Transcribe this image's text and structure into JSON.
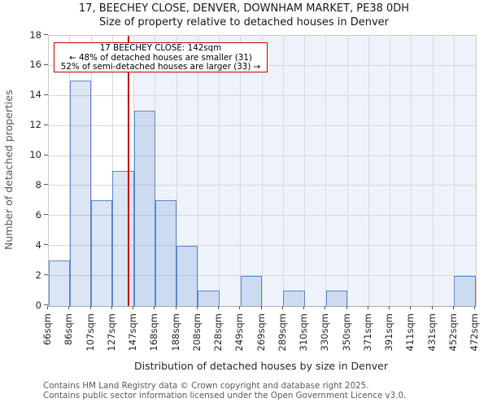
{
  "title": "17, BEECHEY CLOSE, DENVER, DOWNHAM MARKET, PE38 0DH",
  "subtitle": "Size of property relative to detached houses in Denver",
  "annotation": {
    "line1": "17 BEECHEY CLOSE: 142sqm",
    "line2": "← 48% of detached houses are smaller (31)",
    "line3": "52% of semi-detached houses are larger (33) →"
  },
  "y_axis": {
    "label": "Number of detached properties",
    "ticks": [
      0,
      2,
      4,
      6,
      8,
      10,
      12,
      14,
      16,
      18
    ]
  },
  "x_axis": {
    "label": "Distribution of detached houses by size in Denver",
    "tick_labels": [
      "66sqm",
      "86sqm",
      "107sqm",
      "127sqm",
      "147sqm",
      "168sqm",
      "188sqm",
      "208sqm",
      "228sqm",
      "249sqm",
      "269sqm",
      "289sqm",
      "310sqm",
      "330sqm",
      "350sqm",
      "371sqm",
      "391sqm",
      "411sqm",
      "431sqm",
      "452sqm",
      "472sqm"
    ]
  },
  "chart_data": {
    "type": "bar",
    "title": "Size of property relative to detached houses in Denver",
    "xlabel": "Distribution of detached houses by size in Denver",
    "ylabel": "Number of detached properties",
    "bin_edges_sqm": [
      66,
      86,
      107,
      127,
      147,
      168,
      188,
      208,
      228,
      249,
      269,
      289,
      310,
      330,
      350,
      371,
      391,
      411,
      431,
      452,
      472
    ],
    "counts": [
      3,
      15,
      7,
      9,
      13,
      7,
      4,
      1,
      0,
      2,
      0,
      1,
      0,
      1,
      0,
      0,
      0,
      0,
      0,
      2
    ],
    "marker_value_sqm": 142,
    "marker_label": "17 BEECHEY CLOSE: 142sqm",
    "smaller_count": 31,
    "larger_count": 33,
    "ylim": [
      0,
      18
    ],
    "grid": true,
    "legend_position": "none"
  },
  "footer": {
    "line1": "Contains HM Land Registry data © Crown copyright and database right 2025.",
    "line2": "Contains public sector information licensed under the Open Government Licence v3.0."
  },
  "colors": {
    "bar_fill": "rgba(91,135,200,0.22)",
    "bar_border": "#5b87c8",
    "marker_line": "#c00000",
    "annotation_border": "#c00000",
    "region_shade": "#eef3fb",
    "gridline": "#d8d8d8",
    "text_dark": "#262626",
    "text_gray": "#5a5a5a"
  }
}
